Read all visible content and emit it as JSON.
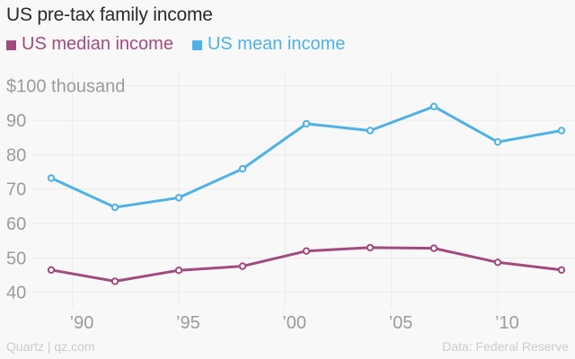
{
  "title": "US pre-tax family income",
  "legend": [
    {
      "label": "US median income",
      "color": "#a24a7f"
    },
    {
      "label": "US mean income",
      "color": "#4eb2e5"
    }
  ],
  "footer": {
    "left": "Quartz | qz.com",
    "right": "Data: Federal Reserve"
  },
  "colors": {
    "background": "#f8f8f8",
    "gridline": "#ebebeb",
    "axis_text": "#9b9b9b",
    "title_text": "#2b2b2b",
    "footer_text": "#cccccc",
    "marker_fill": "#ffffff"
  },
  "chart_data": {
    "type": "line",
    "title": "US pre-tax family income",
    "unit_label": "$100 thousand",
    "x": [
      1989,
      1992,
      1995,
      1998,
      2001,
      2004,
      2007,
      2010,
      2013
    ],
    "series": [
      {
        "name": "US median income",
        "color": "#a24a7f",
        "values": [
          46.5,
          43.2,
          46.4,
          47.6,
          52.0,
          53.0,
          52.8,
          48.7,
          46.5
        ]
      },
      {
        "name": "US mean income",
        "color": "#4eb2e5",
        "values": [
          73.2,
          64.7,
          67.5,
          75.9,
          89.0,
          87.0,
          94.0,
          83.7,
          87.0
        ]
      }
    ],
    "y_ticks": [
      40,
      50,
      60,
      70,
      80,
      90
    ],
    "x_ticks": [
      {
        "year": 1990,
        "label": "’90"
      },
      {
        "year": 1995,
        "label": "’95"
      },
      {
        "year": 2000,
        "label": "’00"
      },
      {
        "year": 2005,
        "label": "’05"
      },
      {
        "year": 2010,
        "label": "’10"
      }
    ],
    "ylim": [
      40,
      100
    ],
    "xlim": [
      1989,
      2013
    ],
    "grid": true,
    "legend_position": "top"
  }
}
